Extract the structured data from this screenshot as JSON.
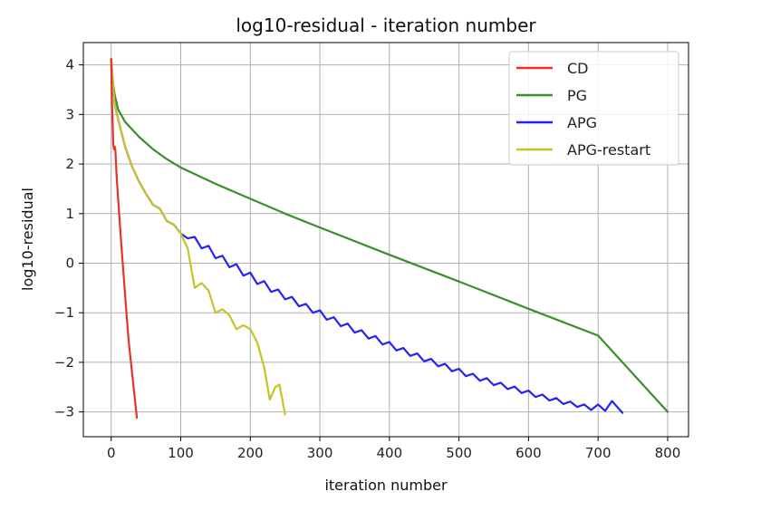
{
  "chart_data": {
    "type": "line",
    "title": "log10-residual - iteration number",
    "xlabel": "iteration number",
    "ylabel": "log10-residual",
    "xlim": [
      -40,
      830
    ],
    "ylim": [
      -3.5,
      4.45
    ],
    "xticks": [
      0,
      100,
      200,
      300,
      400,
      500,
      600,
      700,
      800
    ],
    "yticks": [
      -3,
      -2,
      -1,
      0,
      1,
      2,
      3,
      4
    ],
    "grid": true,
    "legend_position": "top-right",
    "series": [
      {
        "name": "CD",
        "color": "#e8312a",
        "points": [
          [
            0,
            4.12
          ],
          [
            1,
            3.3
          ],
          [
            2,
            2.9
          ],
          [
            3,
            2.4
          ],
          [
            4,
            2.3
          ],
          [
            5,
            2.35
          ],
          [
            6,
            2.3
          ],
          [
            8,
            1.7
          ],
          [
            15,
            0.3
          ],
          [
            25,
            -1.55
          ],
          [
            37,
            -3.12
          ]
        ]
      },
      {
        "name": "PG",
        "color": "#3a8f2c",
        "points": [
          [
            0,
            4.12
          ],
          [
            2,
            3.7
          ],
          [
            5,
            3.4
          ],
          [
            10,
            3.1
          ],
          [
            20,
            2.85
          ],
          [
            40,
            2.55
          ],
          [
            60,
            2.3
          ],
          [
            80,
            2.1
          ],
          [
            100,
            1.93
          ],
          [
            150,
            1.6
          ],
          [
            200,
            1.3
          ],
          [
            250,
            1.0
          ],
          [
            300,
            0.72
          ],
          [
            400,
            0.17
          ],
          [
            500,
            -0.37
          ],
          [
            600,
            -0.92
          ],
          [
            700,
            -1.46
          ],
          [
            800,
            -3.0
          ]
        ]
      },
      {
        "name": "APG",
        "color": "#2323f5",
        "points": [
          [
            0,
            4.12
          ],
          [
            5,
            3.2
          ],
          [
            10,
            2.9
          ],
          [
            20,
            2.35
          ],
          [
            30,
            1.95
          ],
          [
            40,
            1.65
          ],
          [
            50,
            1.4
          ],
          [
            60,
            1.18
          ],
          [
            70,
            1.1
          ],
          [
            80,
            0.85
          ],
          [
            90,
            0.78
          ],
          [
            100,
            0.6
          ],
          [
            110,
            0.5
          ],
          [
            120,
            0.53
          ],
          [
            130,
            0.3
          ],
          [
            140,
            0.35
          ],
          [
            150,
            0.1
          ],
          [
            160,
            0.15
          ],
          [
            170,
            -0.08
          ],
          [
            180,
            -0.02
          ],
          [
            190,
            -0.25
          ],
          [
            200,
            -0.19
          ],
          [
            210,
            -0.42
          ],
          [
            220,
            -0.36
          ],
          [
            230,
            -0.58
          ],
          [
            240,
            -0.53
          ],
          [
            250,
            -0.73
          ],
          [
            260,
            -0.68
          ],
          [
            270,
            -0.87
          ],
          [
            280,
            -0.82
          ],
          [
            290,
            -1.0
          ],
          [
            300,
            -0.95
          ],
          [
            310,
            -1.14
          ],
          [
            320,
            -1.09
          ],
          [
            330,
            -1.27
          ],
          [
            340,
            -1.22
          ],
          [
            350,
            -1.4
          ],
          [
            360,
            -1.35
          ],
          [
            370,
            -1.52
          ],
          [
            380,
            -1.47
          ],
          [
            390,
            -1.64
          ],
          [
            400,
            -1.59
          ],
          [
            410,
            -1.76
          ],
          [
            420,
            -1.71
          ],
          [
            430,
            -1.87
          ],
          [
            440,
            -1.82
          ],
          [
            450,
            -1.98
          ],
          [
            460,
            -1.93
          ],
          [
            470,
            -2.08
          ],
          [
            480,
            -2.03
          ],
          [
            490,
            -2.18
          ],
          [
            500,
            -2.13
          ],
          [
            510,
            -2.28
          ],
          [
            520,
            -2.23
          ],
          [
            530,
            -2.37
          ],
          [
            540,
            -2.32
          ],
          [
            550,
            -2.46
          ],
          [
            560,
            -2.41
          ],
          [
            570,
            -2.54
          ],
          [
            580,
            -2.49
          ],
          [
            590,
            -2.62
          ],
          [
            600,
            -2.57
          ],
          [
            610,
            -2.7
          ],
          [
            620,
            -2.65
          ],
          [
            630,
            -2.77
          ],
          [
            640,
            -2.72
          ],
          [
            650,
            -2.84
          ],
          [
            660,
            -2.79
          ],
          [
            670,
            -2.9
          ],
          [
            680,
            -2.85
          ],
          [
            690,
            -2.96
          ],
          [
            700,
            -2.85
          ],
          [
            710,
            -2.98
          ],
          [
            720,
            -2.78
          ],
          [
            735,
            -3.02
          ]
        ]
      },
      {
        "name": "APG-restart",
        "color": "#c6c22a",
        "points": [
          [
            0,
            4.12
          ],
          [
            5,
            3.2
          ],
          [
            10,
            2.9
          ],
          [
            20,
            2.35
          ],
          [
            30,
            1.95
          ],
          [
            40,
            1.65
          ],
          [
            50,
            1.4
          ],
          [
            60,
            1.18
          ],
          [
            70,
            1.1
          ],
          [
            80,
            0.85
          ],
          [
            90,
            0.78
          ],
          [
            100,
            0.6
          ],
          [
            110,
            0.3
          ],
          [
            120,
            -0.5
          ],
          [
            130,
            -0.4
          ],
          [
            140,
            -0.55
          ],
          [
            150,
            -1.0
          ],
          [
            160,
            -0.93
          ],
          [
            170,
            -1.05
          ],
          [
            180,
            -1.33
          ],
          [
            190,
            -1.25
          ],
          [
            200,
            -1.33
          ],
          [
            210,
            -1.6
          ],
          [
            220,
            -2.1
          ],
          [
            228,
            -2.75
          ],
          [
            236,
            -2.5
          ],
          [
            242,
            -2.45
          ],
          [
            250,
            -3.05
          ]
        ]
      }
    ]
  }
}
